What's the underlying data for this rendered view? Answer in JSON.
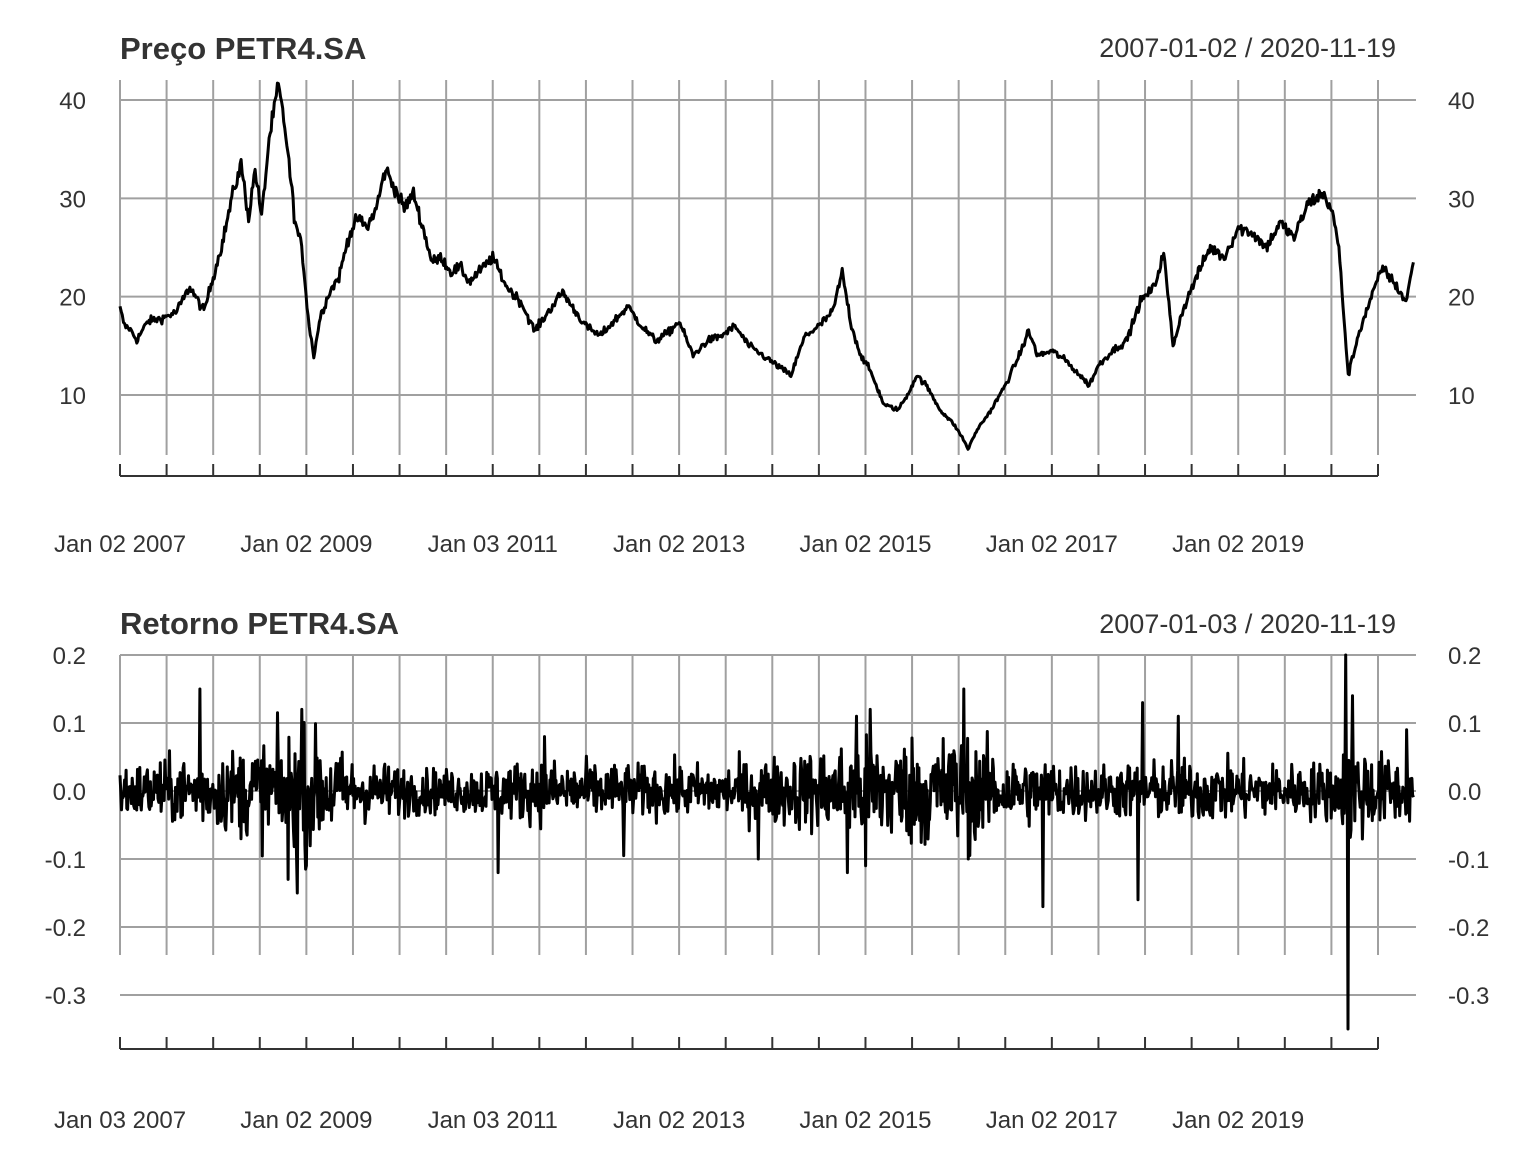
{
  "chart_data": [
    {
      "type": "line",
      "title": "Preço PETR4.SA",
      "date_range": "2007-01-02 / 2020-11-19",
      "x_start": "2007-01-02",
      "x_end": "2020-11-19",
      "yticks": [
        "10",
        "20",
        "30",
        "40"
      ],
      "xtick_labels": [
        "Jan 02 2007",
        "Jan 02 2009",
        "Jan 03 2011",
        "Jan 02 2013",
        "Jan 02 2015",
        "Jan 02 2017",
        "Jan 02 2019"
      ],
      "ylim": [
        4,
        42
      ],
      "grid": true,
      "series": [
        {
          "values_t_y": [
            [
              2007.0,
              18.8
            ],
            [
              2007.05,
              17.0
            ],
            [
              2007.1,
              16.8
            ],
            [
              2007.18,
              15.6
            ],
            [
              2007.3,
              17.5
            ],
            [
              2007.45,
              17.8
            ],
            [
              2007.6,
              18.4
            ],
            [
              2007.75,
              21.0
            ],
            [
              2007.9,
              18.5
            ],
            [
              2008.0,
              22.0
            ],
            [
              2008.1,
              25.5
            ],
            [
              2008.2,
              30.0
            ],
            [
              2008.3,
              33.5
            ],
            [
              2008.38,
              28.0
            ],
            [
              2008.45,
              33.0
            ],
            [
              2008.52,
              28.0
            ],
            [
              2008.6,
              36.0
            ],
            [
              2008.7,
              41.5
            ],
            [
              2008.78,
              36.5
            ],
            [
              2008.88,
              27.5
            ],
            [
              2008.95,
              25.0
            ],
            [
              2009.03,
              17.0
            ],
            [
              2009.08,
              14.0
            ],
            [
              2009.15,
              18.0
            ],
            [
              2009.25,
              20.5
            ],
            [
              2009.35,
              22.0
            ],
            [
              2009.45,
              26.0
            ],
            [
              2009.55,
              28.0
            ],
            [
              2009.65,
              27.0
            ],
            [
              2009.75,
              29.0
            ],
            [
              2009.85,
              33.0
            ],
            [
              2009.95,
              31.0
            ],
            [
              2010.05,
              29.0
            ],
            [
              2010.15,
              30.5
            ],
            [
              2010.25,
              27.0
            ],
            [
              2010.35,
              23.5
            ],
            [
              2010.45,
              24.0
            ],
            [
              2010.55,
              22.5
            ],
            [
              2010.65,
              23.0
            ],
            [
              2010.75,
              21.5
            ],
            [
              2010.9,
              23.0
            ],
            [
              2011.0,
              24.0
            ],
            [
              2011.15,
              21.0
            ],
            [
              2011.3,
              19.5
            ],
            [
              2011.45,
              16.5
            ],
            [
              2011.6,
              18.5
            ],
            [
              2011.75,
              20.5
            ],
            [
              2011.85,
              19.0
            ],
            [
              2012.0,
              17.0
            ],
            [
              2012.15,
              16.0
            ],
            [
              2012.3,
              17.5
            ],
            [
              2012.45,
              19.0
            ],
            [
              2012.6,
              17.0
            ],
            [
              2012.75,
              15.5
            ],
            [
              2012.9,
              16.5
            ],
            [
              2013.0,
              17.5
            ],
            [
              2013.15,
              14.0
            ],
            [
              2013.3,
              15.5
            ],
            [
              2013.45,
              16.0
            ],
            [
              2013.6,
              17.0
            ],
            [
              2013.75,
              15.0
            ],
            [
              2013.9,
              14.0
            ],
            [
              2014.05,
              13.0
            ],
            [
              2014.2,
              12.0
            ],
            [
              2014.35,
              16.0
            ],
            [
              2014.5,
              17.0
            ],
            [
              2014.65,
              18.5
            ],
            [
              2014.75,
              22.5
            ],
            [
              2014.85,
              17.0
            ],
            [
              2014.95,
              14.0
            ],
            [
              2015.05,
              12.5
            ],
            [
              2015.2,
              9.0
            ],
            [
              2015.35,
              8.5
            ],
            [
              2015.45,
              10.0
            ],
            [
              2015.55,
              12.0
            ],
            [
              2015.65,
              11.0
            ],
            [
              2015.8,
              8.5
            ],
            [
              2015.95,
              7.0
            ],
            [
              2016.05,
              5.5
            ],
            [
              2016.1,
              4.5
            ],
            [
              2016.2,
              6.5
            ],
            [
              2016.35,
              8.5
            ],
            [
              2016.5,
              11.0
            ],
            [
              2016.65,
              14.0
            ],
            [
              2016.75,
              16.5
            ],
            [
              2016.85,
              14.0
            ],
            [
              2017.0,
              14.5
            ],
            [
              2017.15,
              13.5
            ],
            [
              2017.3,
              12.0
            ],
            [
              2017.4,
              11.0
            ],
            [
              2017.5,
              13.0
            ],
            [
              2017.65,
              14.5
            ],
            [
              2017.8,
              15.5
            ],
            [
              2017.95,
              19.5
            ],
            [
              2018.1,
              21.0
            ],
            [
              2018.2,
              24.5
            ],
            [
              2018.3,
              15.0
            ],
            [
              2018.4,
              18.5
            ],
            [
              2018.55,
              22.0
            ],
            [
              2018.7,
              25.0
            ],
            [
              2018.85,
              24.0
            ],
            [
              2019.0,
              27.0
            ],
            [
              2019.15,
              26.5
            ],
            [
              2019.3,
              25.0
            ],
            [
              2019.45,
              27.5
            ],
            [
              2019.6,
              26.0
            ],
            [
              2019.75,
              29.5
            ],
            [
              2019.9,
              30.5
            ],
            [
              2020.0,
              29.0
            ],
            [
              2020.08,
              25.0
            ],
            [
              2020.18,
              12.0
            ],
            [
              2020.3,
              16.5
            ],
            [
              2020.45,
              20.5
            ],
            [
              2020.55,
              23.0
            ],
            [
              2020.7,
              21.0
            ],
            [
              2020.8,
              19.5
            ],
            [
              2020.88,
              23.5
            ]
          ]
        }
      ]
    },
    {
      "type": "line",
      "title": "Retorno PETR4.SA",
      "date_range": "2007-01-03 / 2020-11-19",
      "x_start": "2007-01-03",
      "x_end": "2020-11-19",
      "yticks": [
        "-0.3",
        "-0.2",
        "-0.1",
        "0.0",
        "0.1",
        "0.2"
      ],
      "xtick_labels": [
        "Jan 03 2007",
        "Jan 02 2009",
        "Jan 03 2011",
        "Jan 02 2013",
        "Jan 02 2015",
        "Jan 02 2017",
        "Jan 02 2019"
      ],
      "ylim": [
        -0.35,
        0.2
      ],
      "grid": true,
      "spikes_t_y": [
        [
          2007.85,
          0.15
        ],
        [
          2008.8,
          -0.13
        ],
        [
          2008.9,
          -0.15
        ],
        [
          2008.95,
          0.12
        ],
        [
          2009.0,
          -0.11
        ],
        [
          2011.05,
          -0.12
        ],
        [
          2011.55,
          0.08
        ],
        [
          2012.4,
          -0.095
        ],
        [
          2013.85,
          -0.1
        ],
        [
          2014.8,
          -0.12
        ],
        [
          2014.9,
          0.11
        ],
        [
          2015.0,
          -0.11
        ],
        [
          2015.05,
          0.12
        ],
        [
          2016.05,
          0.15
        ],
        [
          2016.1,
          -0.1
        ],
        [
          2016.9,
          -0.17
        ],
        [
          2017.92,
          -0.16
        ],
        [
          2017.97,
          0.13
        ],
        [
          2018.35,
          0.11
        ],
        [
          2020.17,
          -0.35
        ],
        [
          2020.15,
          0.2
        ],
        [
          2020.22,
          0.14
        ],
        [
          2020.8,
          0.09
        ]
      ],
      "volatility_t_a": [
        [
          2007.0,
          0.025
        ],
        [
          2008.0,
          0.035
        ],
        [
          2008.6,
          0.05
        ],
        [
          2009.0,
          0.06
        ],
        [
          2009.5,
          0.03
        ],
        [
          2010.5,
          0.02
        ],
        [
          2011.0,
          0.025
        ],
        [
          2011.5,
          0.03
        ],
        [
          2012.5,
          0.025
        ],
        [
          2013.5,
          0.025
        ],
        [
          2014.5,
          0.04
        ],
        [
          2015.0,
          0.05
        ],
        [
          2016.0,
          0.055
        ],
        [
          2016.5,
          0.035
        ],
        [
          2017.5,
          0.025
        ],
        [
          2018.5,
          0.03
        ],
        [
          2019.5,
          0.025
        ],
        [
          2020.1,
          0.03
        ],
        [
          2020.2,
          0.06
        ],
        [
          2020.5,
          0.035
        ],
        [
          2020.88,
          0.03
        ]
      ]
    }
  ]
}
